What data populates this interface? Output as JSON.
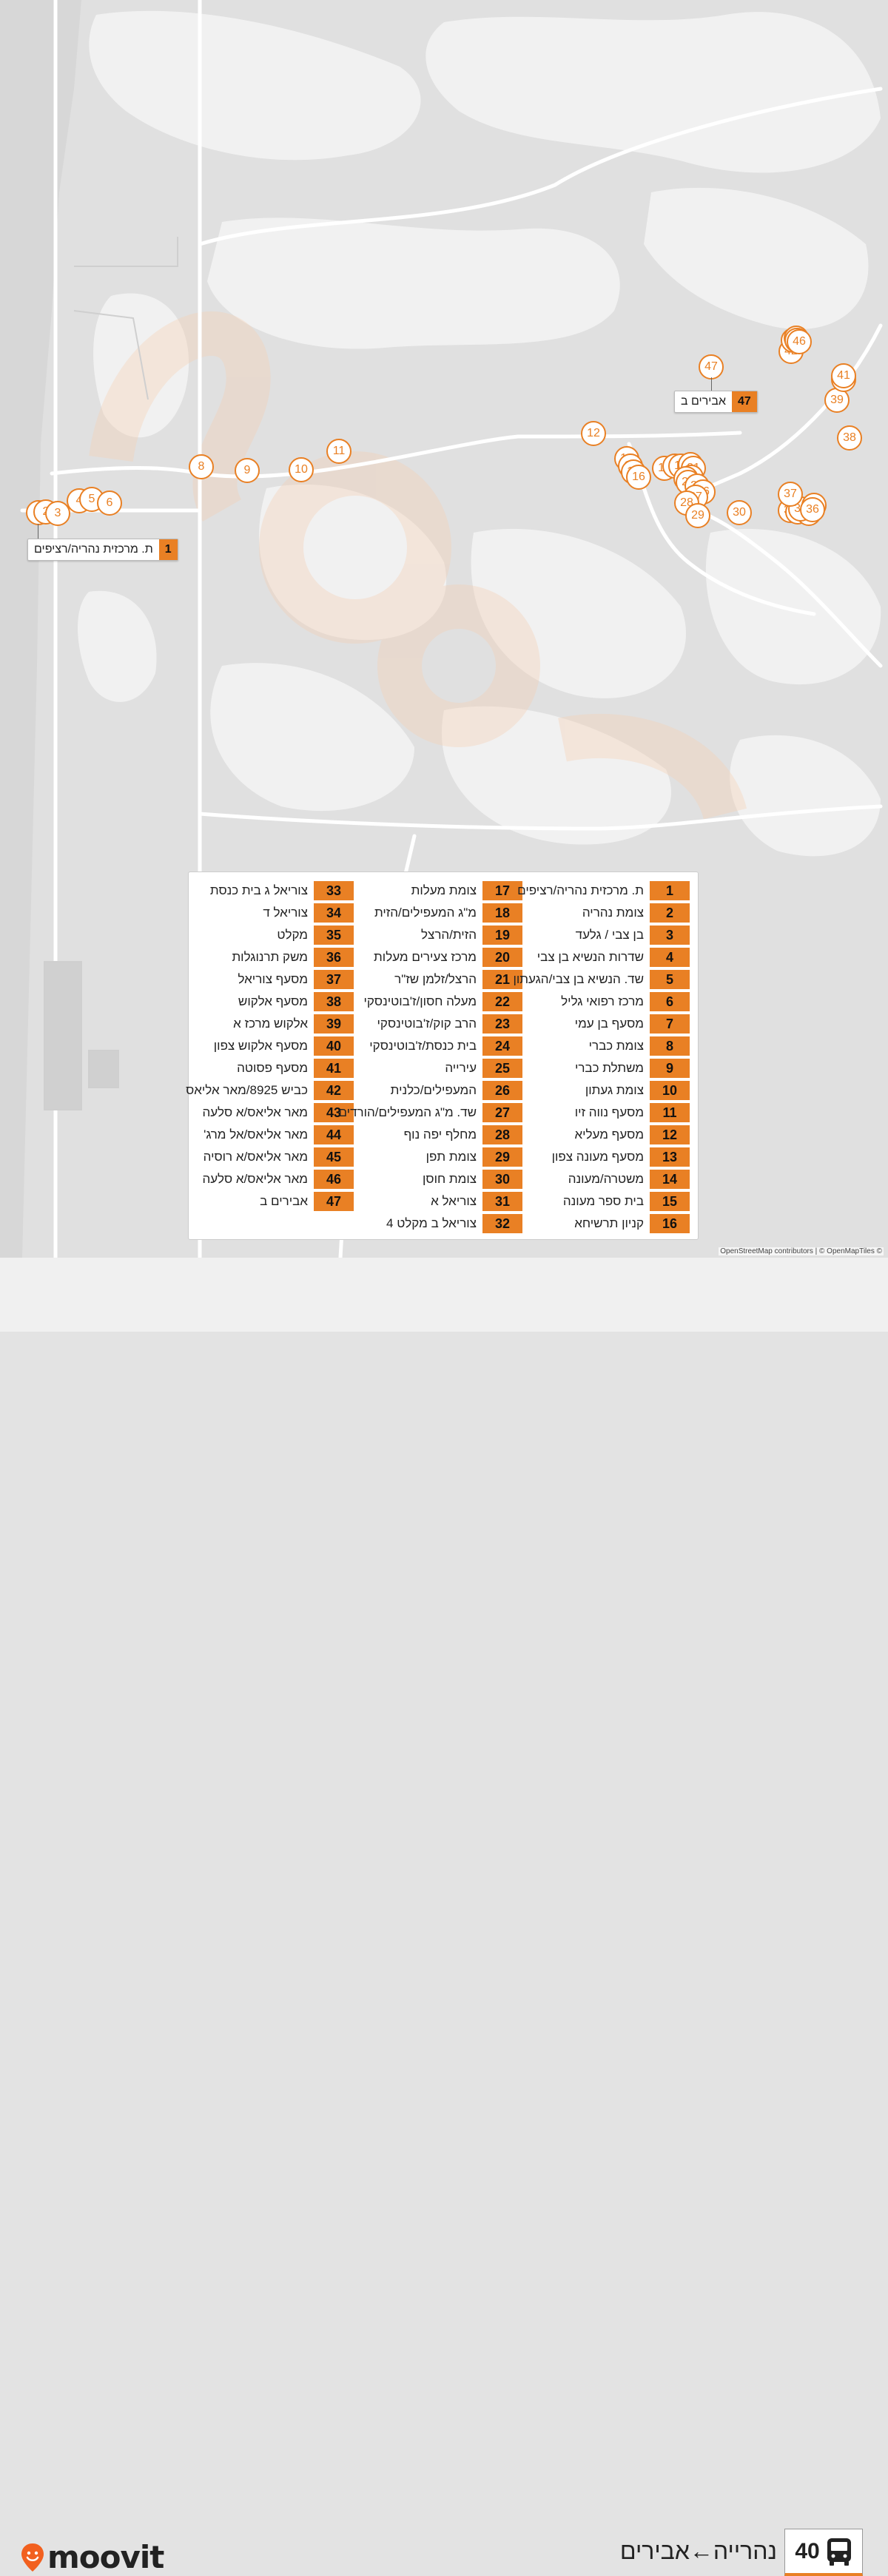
{
  "map": {
    "stop_markers": [
      "1",
      "2",
      "3",
      "4",
      "5",
      "6",
      "8",
      "9",
      "10",
      "11",
      "12",
      "13",
      "14",
      "15",
      "16",
      "17",
      "18",
      "19",
      "20",
      "21",
      "22",
      "23",
      "24",
      "25",
      "26",
      "27",
      "28",
      "29",
      "30",
      "31",
      "32",
      "33",
      "34",
      "35",
      "36",
      "37",
      "38",
      "39",
      "40",
      "41",
      "42",
      "43",
      "44",
      "45",
      "46",
      "47"
    ],
    "callout_start": {
      "num": "1",
      "name": "ת. מרכזית נהריה/רציפים"
    },
    "callout_end": {
      "num": "47",
      "name": "אבירים ב"
    },
    "attribution": "OpenStreetMap contributors | © OpenMapTiles ©"
  },
  "legend": {
    "col1": [
      {
        "num": "1",
        "name": "ת. מרכזית נהריה/רציפים"
      },
      {
        "num": "2",
        "name": "צומת נהריה"
      },
      {
        "num": "3",
        "name": "בן צבי / גלעד"
      },
      {
        "num": "4",
        "name": "שדרות הנשיא בן צבי"
      },
      {
        "num": "5",
        "name": "שד. הנשיא בן צבי/הגעתון"
      },
      {
        "num": "6",
        "name": "מרכז רפואי גליל"
      },
      {
        "num": "7",
        "name": "מסעף בן עמי"
      },
      {
        "num": "8",
        "name": "צומת כברי"
      },
      {
        "num": "9",
        "name": "משתלת כברי"
      },
      {
        "num": "10",
        "name": "צומת געתון"
      },
      {
        "num": "11",
        "name": "מסעף נווה זיו"
      },
      {
        "num": "12",
        "name": "מסעף מעליא"
      },
      {
        "num": "13",
        "name": "מסעף מעונה צפון"
      },
      {
        "num": "14",
        "name": "משטרה/מעונה"
      },
      {
        "num": "15",
        "name": "בית ספר מעונה"
      },
      {
        "num": "16",
        "name": "קניון תרשיחא"
      }
    ],
    "col2": [
      {
        "num": "17",
        "name": "צומת מעלות"
      },
      {
        "num": "18",
        "name": "מ\"ג המעפילים/הזית"
      },
      {
        "num": "19",
        "name": "הזית/הרצל"
      },
      {
        "num": "20",
        "name": "מרכז צעירים מעלות"
      },
      {
        "num": "21",
        "name": "הרצל/זלמן שז\"ר"
      },
      {
        "num": "22",
        "name": "מעלה חסון/ז'בוטינסקי"
      },
      {
        "num": "23",
        "name": "הרב קוק/ז'בוטינסקי"
      },
      {
        "num": "24",
        "name": "בית כנסת/ז'בוטינסקי"
      },
      {
        "num": "25",
        "name": "עירייה"
      },
      {
        "num": "26",
        "name": "המעפילים/כלנית"
      },
      {
        "num": "27",
        "name": "שד. מ\"ג המעפילים/הורדים"
      },
      {
        "num": "28",
        "name": "מחלף יפה נוף"
      },
      {
        "num": "29",
        "name": "צומת תפן"
      },
      {
        "num": "30",
        "name": "צומת חוסן"
      },
      {
        "num": "31",
        "name": "צוריאל א"
      },
      {
        "num": "32",
        "name": "צוריאל ב מקלט 4"
      }
    ],
    "col3": [
      {
        "num": "33",
        "name": "צוריאל ג בית כנסת"
      },
      {
        "num": "34",
        "name": "צוריאל ד"
      },
      {
        "num": "35",
        "name": "מקלט"
      },
      {
        "num": "36",
        "name": "משק תרנוגלות"
      },
      {
        "num": "37",
        "name": "מסעף צוריאל"
      },
      {
        "num": "38",
        "name": "מסעף אלקוש"
      },
      {
        "num": "39",
        "name": "אלקוש מרכז א"
      },
      {
        "num": "40",
        "name": "מסעף אלקוש צפון"
      },
      {
        "num": "41",
        "name": "מסעף פסוטה"
      },
      {
        "num": "42",
        "name": "כביש 8925/מאר אליאס"
      },
      {
        "num": "43",
        "name": "מאר אליאס/א סלעה"
      },
      {
        "num": "44",
        "name": "מאר אליאס/אל מרג'"
      },
      {
        "num": "45",
        "name": "מאר אליאס/א רוסיה"
      },
      {
        "num": "46",
        "name": "מאר אליאס/א סלעה"
      },
      {
        "num": "47",
        "name": "אבירים ב"
      }
    ]
  },
  "footer": {
    "logo_text": "moovit",
    "route_number": "40",
    "route_title": "נהרייה←אבירים",
    "bus_icon": "bus-icon",
    "logo_icon": "moovit-pin-icon"
  },
  "colors": {
    "accent": "#e98024",
    "map_bg": "#e0e0e0",
    "land_light": "#f4f4f4",
    "sea": "#d8d8d8",
    "road": "#ffffff"
  }
}
